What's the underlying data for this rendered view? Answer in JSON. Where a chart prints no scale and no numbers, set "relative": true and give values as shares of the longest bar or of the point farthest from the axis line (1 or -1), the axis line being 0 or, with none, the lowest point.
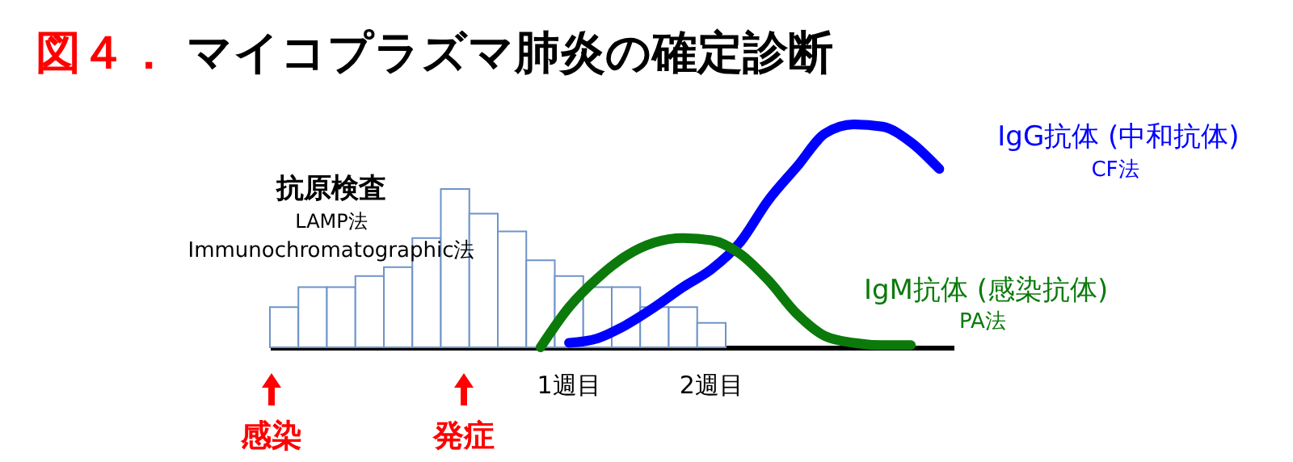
{
  "chart_data": {
    "type": "bar",
    "title": "図４． マイコプラズマ肺炎の確定診断",
    "relative": true,
    "categories": [
      null,
      null,
      null,
      null,
      null,
      null,
      null,
      null,
      null,
      null,
      "1週目",
      null,
      null,
      null,
      null,
      "2週目",
      null,
      null,
      null,
      null,
      null,
      null,
      null,
      null
    ],
    "series": [
      {
        "name": "抗原検査",
        "color": "#6f93c9",
        "values": [
          0.18,
          0.27,
          0.27,
          0.32,
          0.36,
          0.49,
          0.71,
          0.6,
          0.52,
          0.39,
          0.32,
          0.27,
          0.27,
          0.18,
          0.18,
          0.11,
          null,
          null,
          null,
          null,
          null,
          null,
          null,
          null
        ]
      },
      {
        "name": "IgG抗体 (中和抗体)",
        "type": "line",
        "color": "#0000ff",
        "values": [
          null,
          null,
          null,
          null,
          null,
          null,
          null,
          null,
          null,
          null,
          0.02,
          0.04,
          0.1,
          0.18,
          0.27,
          0.35,
          0.47,
          0.66,
          0.81,
          0.96,
          1.0,
          0.99,
          0.92,
          0.8
        ]
      },
      {
        "name": "IgM抗体 (感染抗体)",
        "type": "line",
        "color": "#0b7a0b",
        "values": [
          null,
          null,
          null,
          null,
          null,
          null,
          null,
          null,
          null,
          0.0,
          0.18,
          0.31,
          0.41,
          0.47,
          0.49,
          0.48,
          0.42,
          0.3,
          0.15,
          0.05,
          0.02,
          0.01,
          0.01,
          null
        ]
      }
    ],
    "annotations": [
      "LAMP法",
      "Immunochromatographic法",
      "CF法",
      "PA法",
      "感染",
      "発症"
    ]
  }
}
